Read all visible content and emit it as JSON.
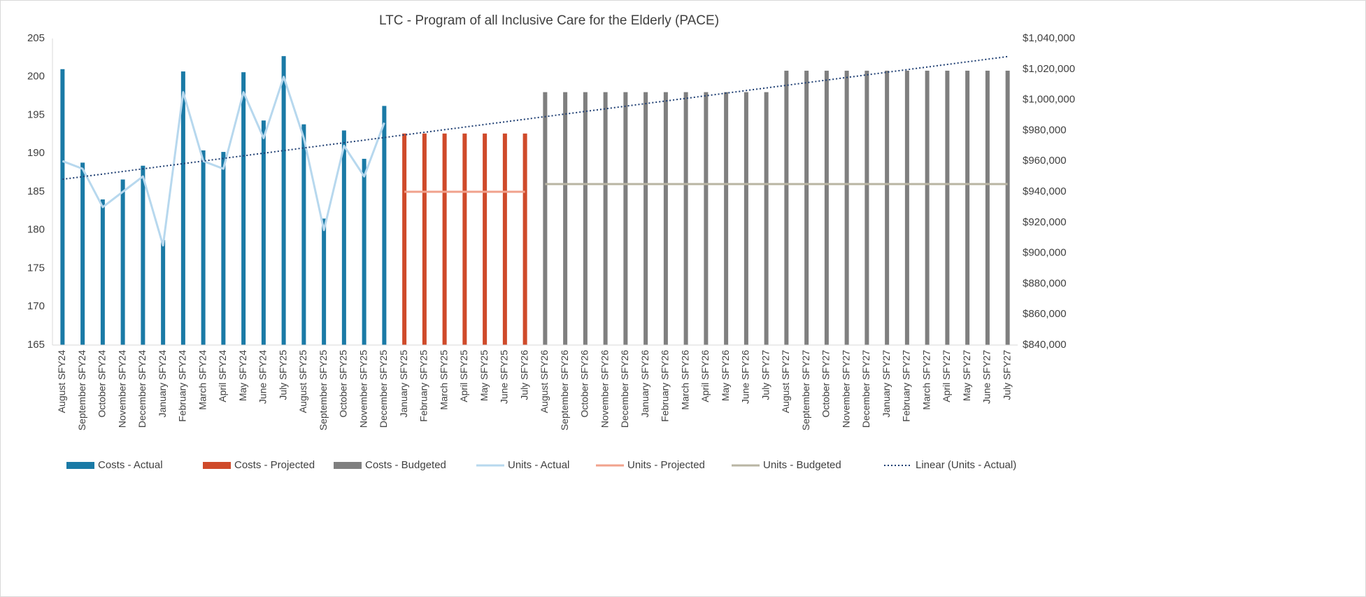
{
  "chart_data": {
    "type": "combo",
    "title": "LTC - Program of all Inclusive Care for the Elderly (PACE)",
    "categories": [
      "August SFY24",
      "September SFY24",
      "October SFY24",
      "November SFY24",
      "December SFY24",
      "January SFY24",
      "February SFY24",
      "March SFY24",
      "April SFY24",
      "May SFY24",
      "June SFY24",
      "July SFY25",
      "August SFY25",
      "September SFY25",
      "October SFY25",
      "November SFY25",
      "December SFY25",
      "January SFY25",
      "February SFY25",
      "March SFY25",
      "April SFY25",
      "May SFY25",
      "June SFY25",
      "July SFY26",
      "August SFY26",
      "September SFY26",
      "October SFY26",
      "November SFY26",
      "December SFY26",
      "January SFY26",
      "February SFY26",
      "March SFY26",
      "April SFY26",
      "May SFY26",
      "June SFY26",
      "July SFY27",
      "August SFY27",
      "September SFY27",
      "October SFY27",
      "November SFY27",
      "December SFY27",
      "January SFY27",
      "February SFY27",
      "March SFY27",
      "April SFY27",
      "May SFY27",
      "June SFY27",
      "July SFY27"
    ],
    "ylim": [
      165,
      205
    ],
    "yticks": [
      165,
      170,
      175,
      180,
      185,
      190,
      195,
      200,
      205
    ],
    "y2lim": [
      840000,
      1040000
    ],
    "y2ticks": [
      {
        "value": 840000,
        "label": "$840,000"
      },
      {
        "value": 860000,
        "label": "$860,000"
      },
      {
        "value": 880000,
        "label": "$880,000"
      },
      {
        "value": 900000,
        "label": "$900,000"
      },
      {
        "value": 920000,
        "label": "$920,000"
      },
      {
        "value": 940000,
        "label": "$940,000"
      },
      {
        "value": 960000,
        "label": "$960,000"
      },
      {
        "value": 980000,
        "label": "$980,000"
      },
      {
        "value": 1000000,
        "label": "$1,000,000"
      },
      {
        "value": 1020000,
        "label": "$1,020,000"
      },
      {
        "value": 1040000,
        "label": "$1,040,000"
      }
    ],
    "grid": false,
    "legend": "bottom",
    "series": [
      {
        "name": "Costs - Actual",
        "type": "bar",
        "axis": "y2",
        "color": "#1a7aa6",
        "values": [
          1020000,
          959000,
          935000,
          948000,
          957000,
          908500,
          1018500,
          967000,
          966000,
          1018000,
          986500,
          1028500,
          984000,
          922500,
          980000,
          961500,
          996000,
          null,
          null,
          null,
          null,
          null,
          null,
          null,
          null,
          null,
          null,
          null,
          null,
          null,
          null,
          null,
          null,
          null,
          null,
          null,
          null,
          null,
          null,
          null,
          null,
          null,
          null,
          null,
          null,
          null,
          null,
          null
        ]
      },
      {
        "name": "Costs - Projected",
        "type": "bar",
        "axis": "y2",
        "color": "#cf4a2a",
        "values": [
          null,
          null,
          null,
          null,
          null,
          null,
          null,
          null,
          null,
          null,
          null,
          null,
          null,
          null,
          null,
          null,
          null,
          978000,
          978000,
          978000,
          978000,
          978000,
          978000,
          978000,
          null,
          null,
          null,
          null,
          null,
          null,
          null,
          null,
          null,
          null,
          null,
          null,
          null,
          null,
          null,
          null,
          null,
          null,
          null,
          null,
          null,
          null,
          null,
          null
        ]
      },
      {
        "name": "Costs - Budgeted",
        "type": "bar",
        "axis": "y2",
        "color": "#7f7f7f",
        "values": [
          null,
          null,
          null,
          null,
          null,
          null,
          null,
          null,
          null,
          null,
          null,
          null,
          null,
          null,
          null,
          null,
          null,
          null,
          null,
          null,
          null,
          null,
          null,
          null,
          1005000,
          1005000,
          1005000,
          1005000,
          1005000,
          1005000,
          1005000,
          1005000,
          1005000,
          1005000,
          1005000,
          1005000,
          1019000,
          1019000,
          1019000,
          1019000,
          1019000,
          1019000,
          1019000,
          1019000,
          1019000,
          1019000,
          1019000,
          1019000
        ]
      },
      {
        "name": "Units - Actual",
        "type": "line",
        "color": "#b7d8ee",
        "values": [
          189,
          188,
          183,
          185,
          187,
          178,
          198,
          189,
          188,
          198,
          192,
          200,
          192,
          180,
          191,
          187,
          194,
          null,
          null,
          null,
          null,
          null,
          null,
          null,
          null,
          null,
          null,
          null,
          null,
          null,
          null,
          null,
          null,
          null,
          null,
          null,
          null,
          null,
          null,
          null,
          null,
          null,
          null,
          null,
          null,
          null,
          null,
          null
        ]
      },
      {
        "name": "Units - Projected",
        "type": "line",
        "color": "#f1a28c",
        "values": [
          null,
          null,
          null,
          null,
          null,
          null,
          null,
          null,
          null,
          null,
          null,
          null,
          null,
          null,
          null,
          null,
          null,
          185,
          185,
          185,
          185,
          185,
          185,
          185,
          null,
          null,
          null,
          null,
          null,
          null,
          null,
          null,
          null,
          null,
          null,
          null,
          null,
          null,
          null,
          null,
          null,
          null,
          null,
          null,
          null,
          null,
          null,
          null
        ]
      },
      {
        "name": "Units - Budgeted",
        "type": "line",
        "color": "#b9b5a3",
        "values": [
          null,
          null,
          null,
          null,
          null,
          null,
          null,
          null,
          null,
          null,
          null,
          null,
          null,
          null,
          null,
          null,
          null,
          null,
          null,
          null,
          null,
          null,
          null,
          null,
          186,
          186,
          186,
          186,
          186,
          186,
          186,
          186,
          186,
          186,
          186,
          186,
          186,
          186,
          186,
          186,
          186,
          186,
          186,
          186,
          186,
          186,
          186,
          186
        ]
      },
      {
        "name": "Linear (Units - Actual)",
        "type": "trendline",
        "trendline": "linear",
        "of": "Units - Actual",
        "color": "#1f3f73"
      }
    ]
  }
}
